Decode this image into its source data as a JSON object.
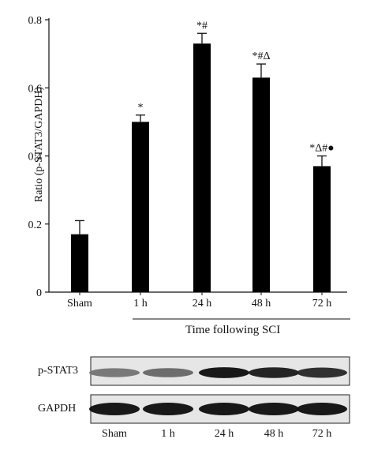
{
  "chart_data": {
    "type": "bar",
    "categories": [
      "Sham",
      "1 h",
      "24 h",
      "48 h",
      "72 h"
    ],
    "values": [
      0.17,
      0.5,
      0.73,
      0.63,
      0.37
    ],
    "errors": [
      0.04,
      0.02,
      0.03,
      0.04,
      0.03
    ],
    "annotations": [
      "",
      "*",
      "*#",
      "*#Δ",
      "*Δ#●"
    ],
    "ylabel": "Ratio (p-STAT3/GAPDH)",
    "xlabel": "Time following SCI",
    "ylim": [
      0,
      0.8
    ],
    "yticks": [
      "0",
      "0.2",
      "0.4",
      "0.6",
      "0.8"
    ],
    "bar_color": "#000000",
    "grid": false
  },
  "blot": {
    "rows": [
      {
        "label": "p-STAT3",
        "band_intensity": [
          0.55,
          0.6,
          0.95,
          0.9,
          0.85
        ]
      },
      {
        "label": "GAPDH",
        "band_intensity": [
          0.95,
          0.95,
          0.95,
          0.95,
          0.95
        ]
      }
    ],
    "lane_labels": [
      "Sham",
      "1 h",
      "24 h",
      "48 h",
      "72 h"
    ]
  }
}
